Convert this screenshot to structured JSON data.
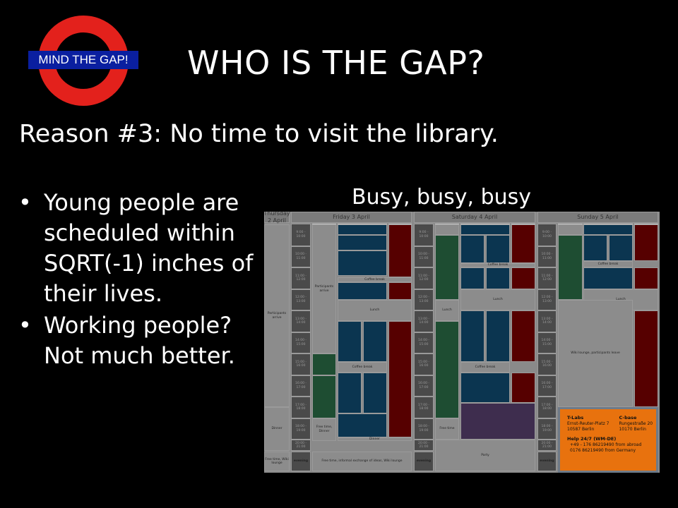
{
  "logo": {
    "text": "MIND THE GAP!"
  },
  "slide": {
    "title": "WHO IS THE GAP?",
    "subtitle": "Reason #3: No time to visit the library.",
    "bullets": [
      "Young people are scheduled within SQRT(-1) inches of their lives.",
      "Working people? Not much better."
    ],
    "image_caption": "Busy, busy, busy"
  },
  "schedule": {
    "days": [
      "Thursday 2 April",
      "Friday 3 April",
      "Saturday 4 April",
      "Sunday 5 April"
    ],
    "tracks": [
      "Sport",
      "Schooling",
      "Home"
    ],
    "track_colors": {
      "Sport": "#3aa06a",
      "Schooling": "#1a78b4",
      "Home": "#c4161c"
    },
    "times": [
      "9:00 - 10:00",
      "10:00 - 11:00",
      "11:00 - 12:00",
      "12:00 - 13:00",
      "13:00 - 14:00",
      "14:00 - 15:00",
      "15:00 - 16:00",
      "16:00 - 17:00",
      "17:00 - 18:00",
      "18:00 - 19:00",
      "20:00 - 21:00",
      "evening"
    ],
    "labels": {
      "participants_arrive": "Participants arrive",
      "dinner": "Dinner",
      "free_time_wiki": "Free time, Wiki lounge",
      "free_time_dinner": "Free time, Dinner",
      "coffee_break": "Coffee break",
      "lunch": "Lunch",
      "free_time_informal": "Free time, informal exchange of ideas, Wiki lounge",
      "free_time": "Free time",
      "party": "Party",
      "wiki_leave": "Wiki lounge, participants leave"
    },
    "info_box": {
      "venue1_name": "T-Labs",
      "venue1_address": "Ernst-Reuter-Platz 7\n10587 Berlin",
      "venue2_name": "C-base",
      "venue2_address": "Rungestraße 20\n10170 Berlin",
      "help_title": "Help 24/7 (WM-DE)",
      "phone_abroad": "+49 - 176  86219490 from abroad",
      "phone_germany": "0176  86219490 from Germany"
    }
  }
}
